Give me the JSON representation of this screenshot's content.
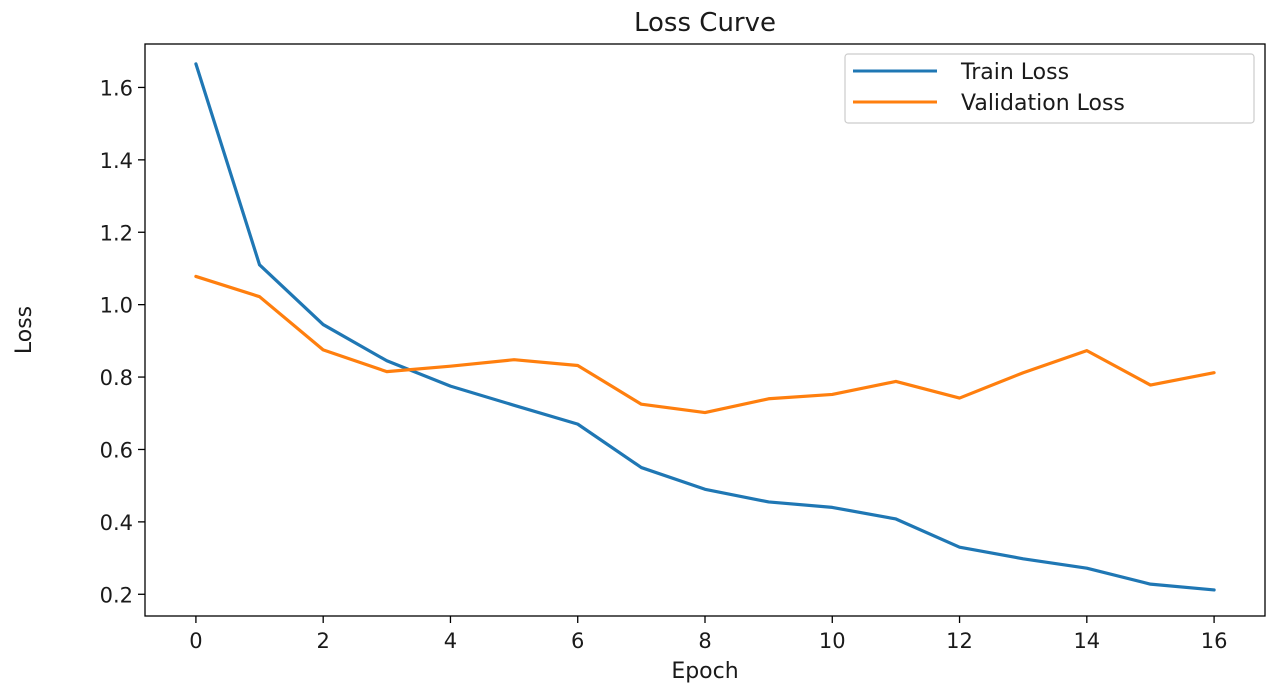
{
  "chart_data": {
    "type": "line",
    "title": "Loss Curve",
    "xlabel": "Epoch",
    "ylabel": "Loss",
    "x": [
      0,
      1,
      2,
      3,
      4,
      5,
      6,
      7,
      8,
      9,
      10,
      11,
      12,
      13,
      14,
      15,
      16
    ],
    "xlim": [
      -0.8,
      16.8
    ],
    "ylim": [
      0.14,
      1.72
    ],
    "xticks": [
      0,
      2,
      4,
      6,
      8,
      10,
      12,
      14,
      16
    ],
    "yticks": [
      0.2,
      0.4,
      0.6,
      0.8,
      1.0,
      1.2,
      1.4,
      1.6
    ],
    "xtick_labels": [
      "0",
      "2",
      "4",
      "6",
      "8",
      "10",
      "12",
      "14",
      "16"
    ],
    "ytick_labels": [
      "0.2",
      "0.4",
      "0.6",
      "0.8",
      "1.0",
      "1.2",
      "1.4",
      "1.6"
    ],
    "grid": false,
    "legend_position": "top-right",
    "series": [
      {
        "name": "Train Loss",
        "color": "#1f77b4",
        "values": [
          1.665,
          1.11,
          0.945,
          0.845,
          0.775,
          0.722,
          0.67,
          0.55,
          0.49,
          0.455,
          0.44,
          0.408,
          0.33,
          0.298,
          0.272,
          0.228,
          0.212
        ]
      },
      {
        "name": "Validation Loss",
        "color": "#ff7f0e",
        "values": [
          1.078,
          1.022,
          0.875,
          0.815,
          0.83,
          0.848,
          0.832,
          0.725,
          0.702,
          0.74,
          0.752,
          0.788,
          0.742,
          0.812,
          0.873,
          0.778,
          0.812
        ]
      }
    ]
  }
}
